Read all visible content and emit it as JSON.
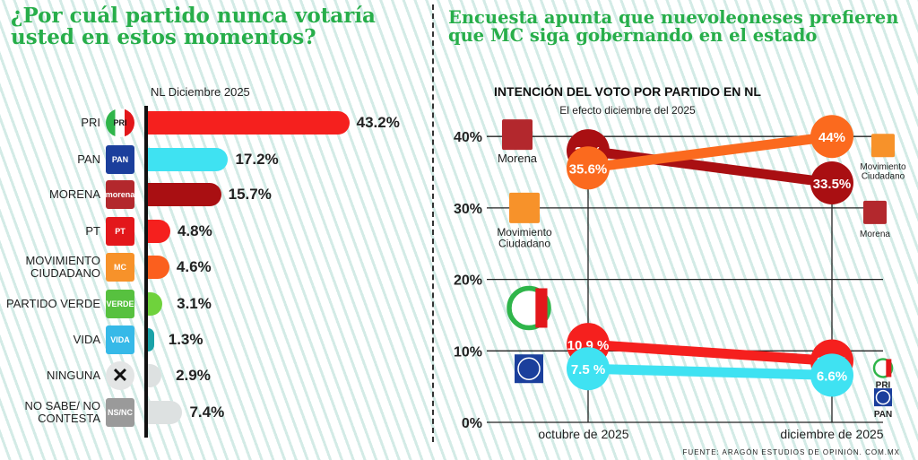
{
  "left": {
    "title": "¿Por cuál partido nunca votaría usted en estos momentos?",
    "subtitle": "NL Diciembre 2025"
  },
  "right": {
    "title": "Encuesta apunta que nuevoleoneses prefieren que MC siga gobernando en el estado",
    "source": "FUENTE: ARAGÓN ESTUDIOS DE OPINIÓN. COM.MX"
  },
  "chart_data": [
    {
      "type": "bar",
      "orientation": "horizontal",
      "subtitle": "NL Diciembre 2025",
      "categories": [
        "PRI",
        "PAN",
        "MORENA",
        "PT",
        "MOVIMIENTO CIUDADANO",
        "PARTIDO VERDE",
        "VIDA",
        "NINGUNA",
        "NO SABE/ NO CONTESTA"
      ],
      "values": [
        43.2,
        17.2,
        15.7,
        4.8,
        4.6,
        3.1,
        1.3,
        2.9,
        7.4
      ],
      "value_labels": [
        "43.2%",
        "17.2%",
        "15.7%",
        "4.8%",
        "4.6%",
        "3.1%",
        "1.3%",
        "2.9%",
        "7.4%"
      ],
      "colors": [
        "#f5201e",
        "#3fe2f2",
        "#a90f12",
        "#f5201e",
        "#fb5f1e",
        "#6fd23c",
        "#1aa2a8",
        "#dde1e1",
        "#dde1e1"
      ],
      "logos": [
        {
          "icon": "pri-logo-icon",
          "text": "PRI",
          "bg": "#ffffff"
        },
        {
          "icon": "pan-logo-icon",
          "text": "PAN",
          "bg": "#1b3f9c"
        },
        {
          "icon": "morena-logo-icon",
          "text": "morena",
          "bg": "#b3282d"
        },
        {
          "icon": "pt-logo-icon",
          "text": "PT",
          "bg": "#e3171b"
        },
        {
          "icon": "mc-logo-icon",
          "text": "MC",
          "bg": "#f7922a"
        },
        {
          "icon": "verde-logo-icon",
          "text": "VERDE",
          "bg": "#57c13f"
        },
        {
          "icon": "vida-logo-icon",
          "text": "VIDA",
          "bg": "#36b9e8"
        },
        {
          "icon": "x-icon",
          "text": "✕",
          "bg": "#e3e5e5"
        },
        {
          "icon": "ns-nc-icon",
          "text": "NS/NC",
          "bg": "#9a9a9a"
        }
      ]
    },
    {
      "type": "line",
      "title": "INTENCIÓN DEL VOTO POR PARTIDO EN NL",
      "subtitle": "El efecto diciembre del 2025",
      "categories": [
        "octubre de 2025",
        "diciembre de 2025"
      ],
      "yticks": [
        "0%",
        "10%",
        "20%",
        "30%",
        "40%"
      ],
      "ylim": [
        0,
        45
      ],
      "grid": true,
      "series": [
        {
          "name": "Morena",
          "values": [
            38,
            33.5
          ],
          "labels": [
            "38%",
            "33.5%"
          ],
          "color": "#a90f12"
        },
        {
          "name": "Movimiento Ciudadano",
          "values": [
            35.6,
            44
          ],
          "labels": [
            "35.6%",
            "44%"
          ],
          "color": "#fb6a1e"
        },
        {
          "name": "PRI",
          "values": [
            10.9,
            8.6
          ],
          "labels": [
            "10.9 %",
            "8.6%"
          ],
          "color": "#f5201e"
        },
        {
          "name": "PAN",
          "values": [
            7.5,
            6.6
          ],
          "labels": [
            "7.5 %",
            "6.6%"
          ],
          "color": "#3fe2f2"
        }
      ]
    }
  ]
}
